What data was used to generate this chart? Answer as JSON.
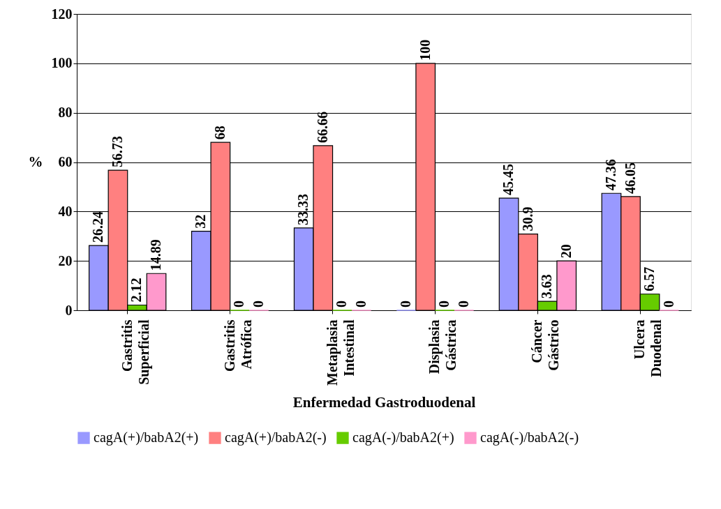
{
  "chart_data": {
    "type": "bar",
    "xlabel": "Enfermedad Gastroduodenal",
    "ylabel": "%",
    "categories": [
      "Gastritis Superficial",
      "Gastritis Atrófica",
      "Metaplasia Intestinal",
      "Displasia Gástrica",
      "Cáncer Gástrico",
      "Ulcera Duodenal"
    ],
    "series": [
      {
        "name": "cagA(+)/babA2(+)",
        "color": "#9999ff",
        "values": [
          26.24,
          32,
          33.33,
          0,
          45.45,
          47.36
        ]
      },
      {
        "name": "cagA(+)/babA2(-)",
        "color": "#ff8080",
        "values": [
          56.73,
          68,
          66.66,
          100,
          30.9,
          46.05
        ]
      },
      {
        "name": "cagA(-)/babA2(+)",
        "color": "#66cc00",
        "values": [
          2.12,
          0,
          0,
          0,
          3.63,
          6.57
        ]
      },
      {
        "name": "cagA(-)/babA2(-)",
        "color": "#ff99cc",
        "values": [
          14.89,
          0,
          0,
          0,
          20,
          0
        ]
      }
    ],
    "ylim": [
      0,
      120
    ],
    "yticks": [
      0,
      20,
      40,
      60,
      80,
      100,
      120
    ],
    "grid": "y",
    "legend": "bottom",
    "data_labels": true
  }
}
